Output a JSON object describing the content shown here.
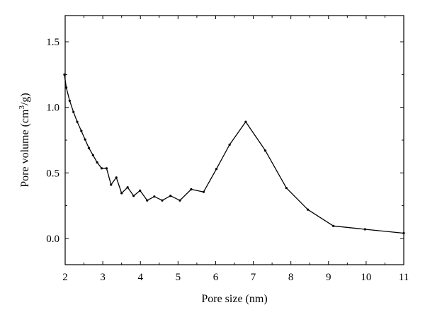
{
  "chart_data": {
    "type": "line",
    "title": "",
    "xlabel": "Pore size (nm)",
    "ylabel_main": "Pore volume (cm",
    "ylabel_sup": "3",
    "ylabel_tail": "/g)",
    "xlim": [
      2,
      11
    ],
    "ylim": [
      -0.2,
      1.7
    ],
    "xticks": [
      2,
      3,
      4,
      5,
      6,
      7,
      8,
      9,
      10,
      11
    ],
    "yticks": [
      0.0,
      0.5,
      1.0,
      1.5
    ],
    "ytick_labels": [
      "0.0",
      "0.5",
      "1.0",
      "1.5"
    ],
    "grid": false,
    "line_color": "#000000",
    "series": [
      {
        "x": [
          1.98,
          2.03,
          2.12,
          2.22,
          2.32,
          2.43,
          2.53,
          2.63,
          2.74,
          2.85,
          2.97,
          3.1,
          3.22,
          3.36,
          3.5,
          3.66,
          3.82,
          3.99,
          4.18,
          4.37,
          4.58,
          4.8,
          5.05,
          5.35,
          5.68,
          6.02,
          6.37,
          6.8,
          7.32,
          7.88,
          8.45,
          9.13,
          9.97,
          11.0
        ],
        "y": [
          1.25,
          1.15,
          1.05,
          0.965,
          0.89,
          0.82,
          0.755,
          0.69,
          0.635,
          0.58,
          0.535,
          0.535,
          0.41,
          0.465,
          0.345,
          0.39,
          0.325,
          0.365,
          0.29,
          0.32,
          0.29,
          0.325,
          0.29,
          0.375,
          0.355,
          0.53,
          0.715,
          0.89,
          0.67,
          0.385,
          0.22,
          0.095,
          0.07,
          0.04
        ]
      }
    ]
  }
}
